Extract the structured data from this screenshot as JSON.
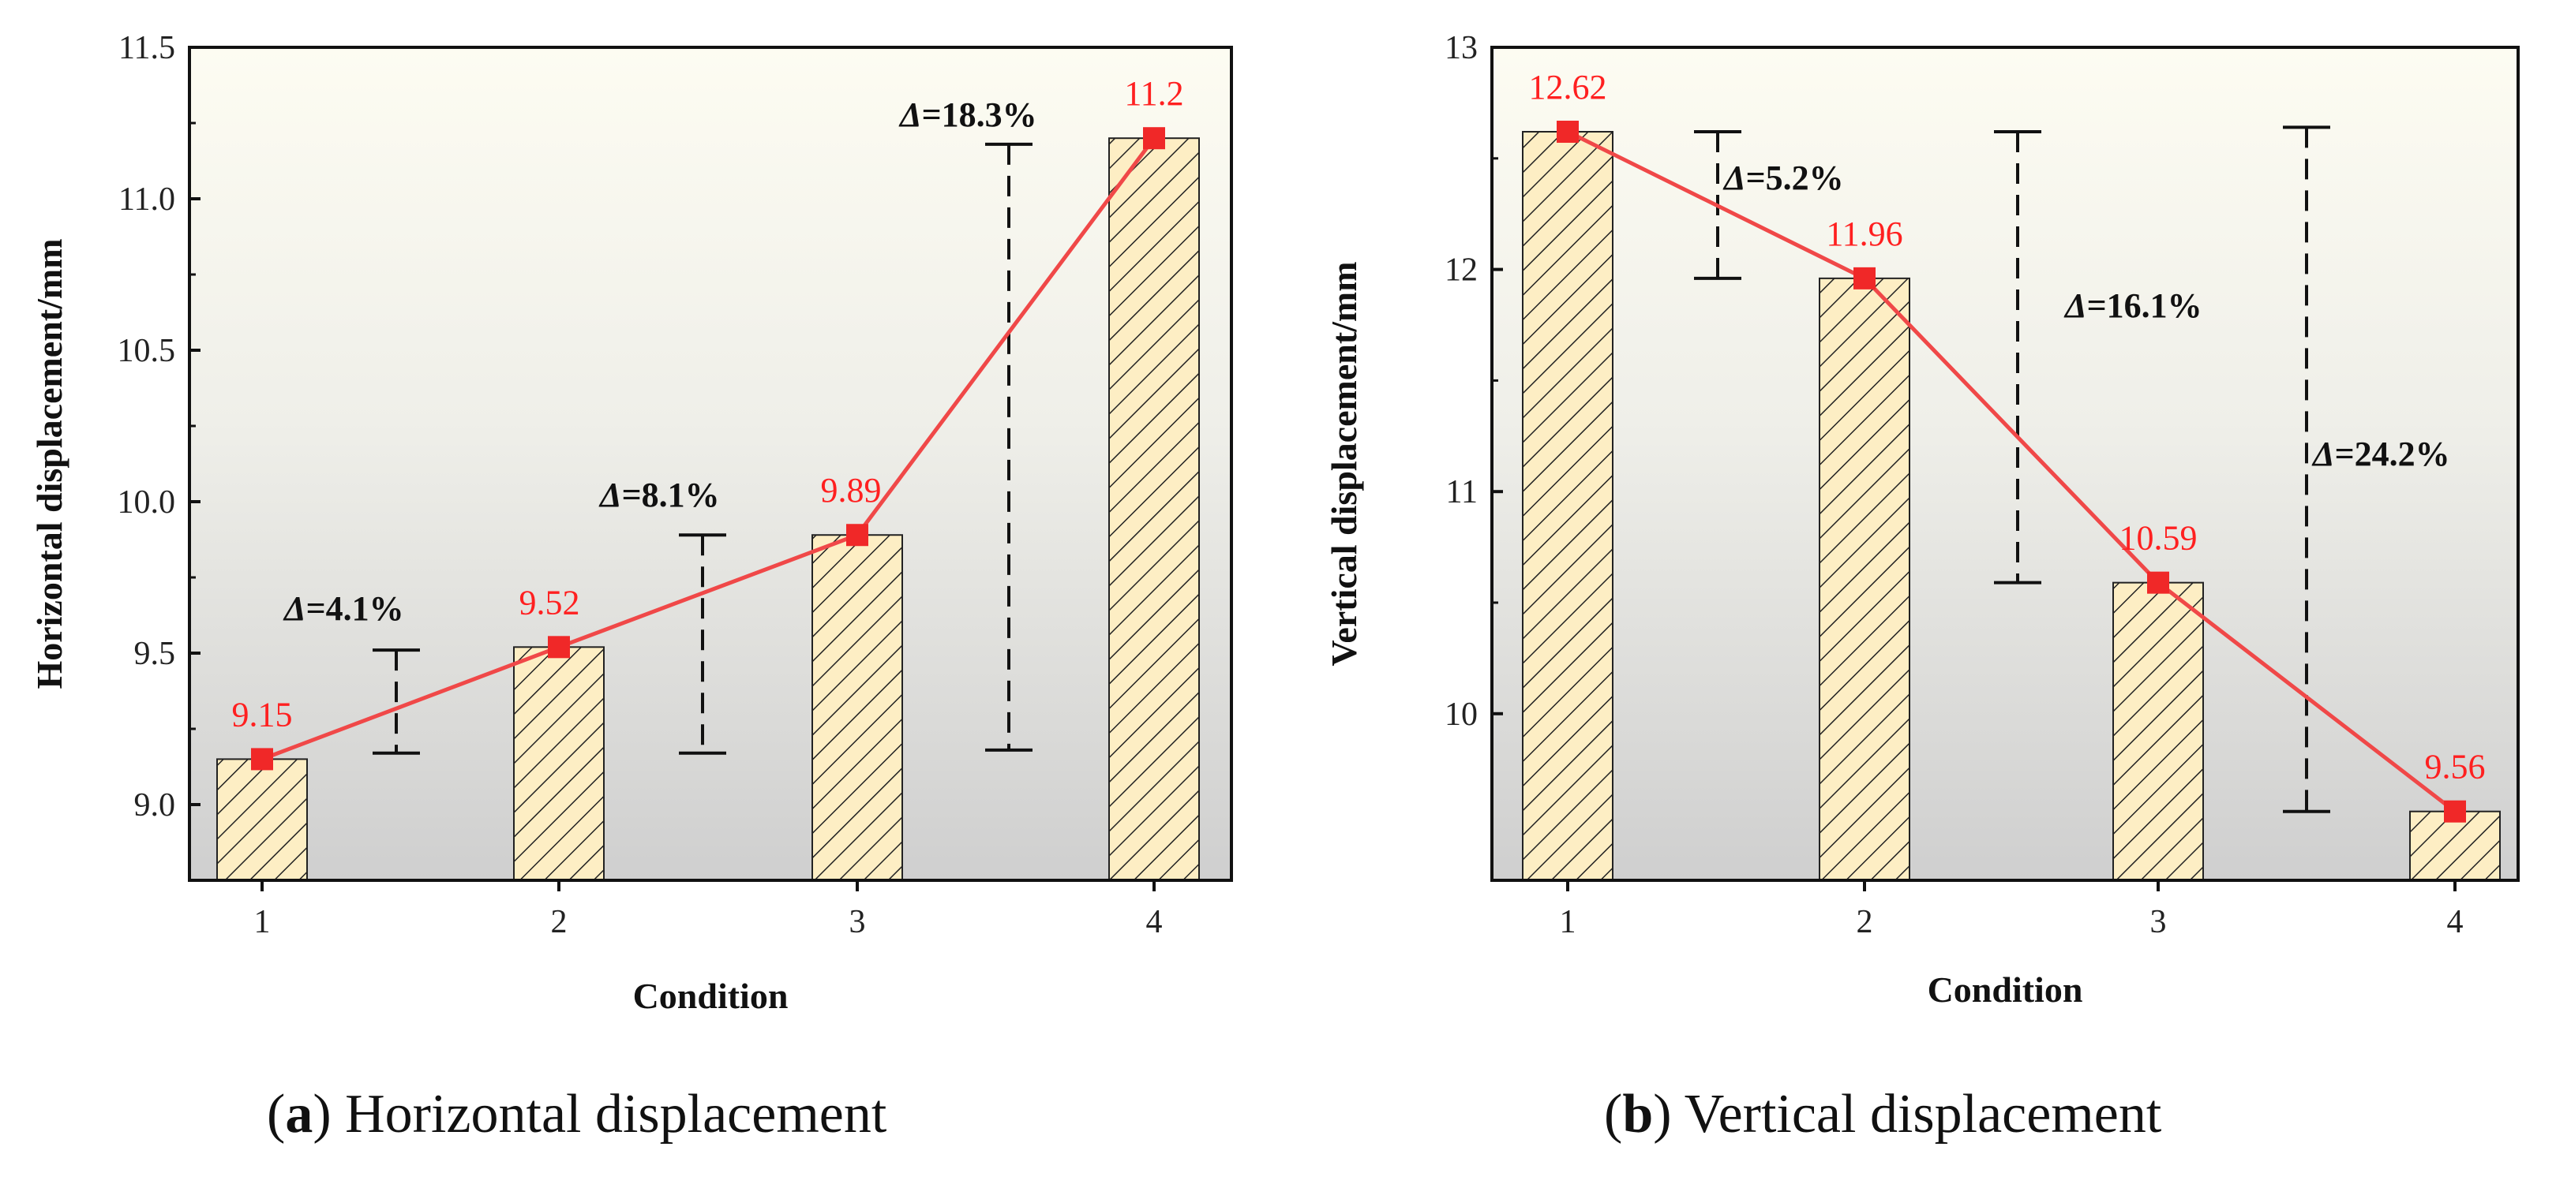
{
  "chart_data": [
    {
      "type": "bar",
      "id": "a",
      "categories": [
        "1",
        "2",
        "3",
        "4"
      ],
      "values": [
        9.15,
        9.52,
        9.89,
        11.2
      ],
      "value_labels": [
        "9.15",
        "9.52",
        "9.89",
        "11.2"
      ],
      "line_overlay": true,
      "xlabel": "Condition",
      "ylabel": "Horizontal displacement/mm",
      "ylim": [
        8.75,
        11.5
      ],
      "yticks": [
        9.0,
        9.5,
        10.0,
        10.5,
        11.0,
        11.5
      ],
      "ytick_labels": [
        "9.0",
        "9.5",
        "10.0",
        "10.5",
        "11.0",
        "11.5"
      ],
      "annotations": [
        {
          "text": "=4.1%",
          "symbol": "Δ",
          "x_between": [
            1,
            2
          ],
          "from": 9.17,
          "to": 9.51,
          "style": "dashed"
        },
        {
          "text": "=8.1%",
          "symbol": "Δ",
          "x_between": [
            2,
            3
          ],
          "from": 9.17,
          "to": 9.89,
          "style": "dashed"
        },
        {
          "text": "=18.3%",
          "symbol": "Δ",
          "x_between": [
            3,
            4
          ],
          "from": 9.18,
          "to": 11.18,
          "style": "dashed"
        }
      ],
      "caption_letter": "a",
      "caption_text": "Horizontal displacement",
      "colors": {
        "bar_fill": "#fdeec4",
        "hatch": "#222222",
        "line": "#f04848",
        "marker": "#f02828",
        "label": "#ff2020"
      }
    },
    {
      "type": "bar",
      "id": "b",
      "categories": [
        "1",
        "2",
        "3",
        "4"
      ],
      "values": [
        12.62,
        11.96,
        10.59,
        9.56
      ],
      "value_labels": [
        "12.62",
        "11.96",
        "10.59",
        "9.56"
      ],
      "line_overlay": true,
      "xlabel": "Condition",
      "ylabel": "Vertical displacement/mm",
      "ylim": [
        9.25,
        13.0
      ],
      "yticks": [
        10,
        11,
        12,
        13
      ],
      "ytick_labels": [
        "10",
        "11",
        "12",
        "13"
      ],
      "annotations": [
        {
          "text": "=5.2%",
          "symbol": "Δ",
          "x_between": [
            1,
            2
          ],
          "from": 11.96,
          "to": 12.62,
          "style": "dashed"
        },
        {
          "text": "=16.1%",
          "symbol": "Δ",
          "x_between": [
            2,
            3
          ],
          "from": 10.59,
          "to": 12.62,
          "style": "dashed"
        },
        {
          "text": "=24.2%",
          "symbol": "Δ",
          "x_between": [
            3,
            4
          ],
          "from": 9.56,
          "to": 12.64,
          "style": "dashed"
        }
      ],
      "caption_letter": "b",
      "caption_text": "Vertical displacement",
      "colors": {
        "bar_fill": "#fdeec4",
        "hatch": "#222222",
        "line": "#f04848",
        "marker": "#f02828",
        "label": "#ff2020"
      }
    }
  ]
}
